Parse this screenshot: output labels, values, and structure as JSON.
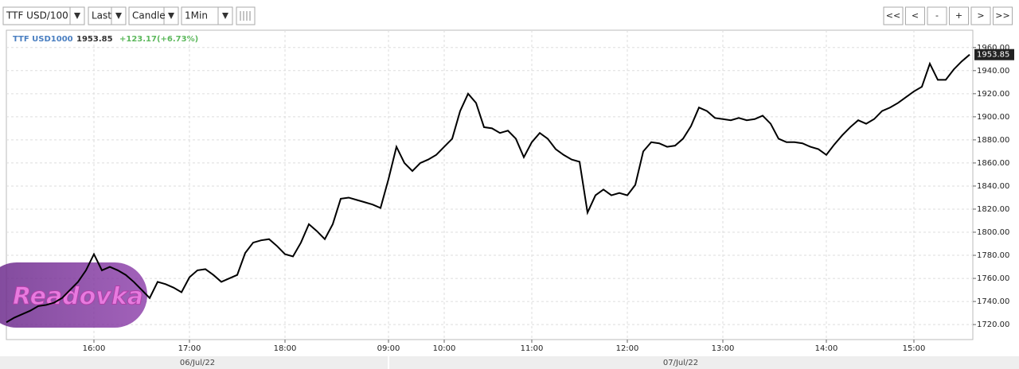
{
  "toolbar": {
    "symbol": "TTF USD/100",
    "price_type": "Last",
    "chart_type": "Candle",
    "interval": "1Min",
    "nav_buttons": [
      "<<",
      "<",
      "-",
      "+",
      ">",
      ">>"
    ]
  },
  "chart_data": {
    "type": "line",
    "symbol": "TTF USD1000",
    "last": "1953.85",
    "change": "+123.17(+6.73%)",
    "watermark": "Readovka",
    "color": "#000000",
    "grid": true,
    "dates": [
      "06/Jul/22",
      "07/Jul/22"
    ],
    "categories": [
      null,
      null,
      null,
      null,
      null,
      null,
      null,
      null,
      null,
      null,
      null,
      "16:00",
      null,
      null,
      null,
      null,
      null,
      null,
      null,
      null,
      null,
      null,
      null,
      "17:00",
      null,
      null,
      null,
      null,
      null,
      null,
      null,
      null,
      null,
      null,
      null,
      "18:00",
      null,
      null,
      null,
      null,
      null,
      null,
      null,
      null,
      null,
      null,
      null,
      null,
      "09:00",
      null,
      null,
      null,
      null,
      null,
      null,
      "10:00",
      null,
      null,
      null,
      null,
      null,
      null,
      null,
      null,
      null,
      null,
      "11:00",
      null,
      null,
      null,
      null,
      null,
      null,
      null,
      null,
      null,
      null,
      null,
      "12:00",
      null,
      null,
      null,
      null,
      null,
      null,
      null,
      null,
      null,
      null,
      null,
      "13:00",
      null,
      null,
      null,
      null,
      null,
      null,
      null,
      null,
      null,
      null,
      null,
      null,
      "14:00",
      null,
      null,
      null,
      null,
      null,
      null,
      null,
      null,
      null,
      null,
      "15:00",
      null,
      null,
      null,
      null,
      null,
      null,
      null
    ],
    "values": [
      1722,
      1726,
      1729,
      1732,
      1736,
      1737,
      1739,
      1743,
      1750,
      1757,
      1767,
      1781,
      1767,
      1770,
      1767,
      1763,
      1757,
      1750,
      1743,
      1757,
      1755,
      1752,
      1748,
      1761,
      1767,
      1768,
      1763,
      1757,
      1760,
      1763,
      1782,
      1791,
      1793,
      1794,
      1788,
      1781,
      1779,
      1791,
      1807,
      1801,
      1794,
      1807,
      1829,
      1830,
      1828,
      1826,
      1824,
      1821,
      1846,
      1874,
      1860,
      1853,
      1860,
      1863,
      1867,
      1874,
      1881,
      1905,
      1920,
      1912,
      1891,
      1890,
      1886,
      1888,
      1881,
      1865,
      1878,
      1886,
      1881,
      1872,
      1867,
      1863,
      1861,
      1817,
      1832,
      1837,
      1832,
      1834,
      1832,
      1841,
      1870,
      1878,
      1877,
      1874,
      1875,
      1881,
      1892,
      1908,
      1905,
      1899,
      1898,
      1897,
      1899,
      1897,
      1898,
      1901,
      1894,
      1881,
      1878,
      1878,
      1877,
      1874,
      1872,
      1867,
      1876,
      1884,
      1891,
      1897,
      1894,
      1898,
      1905,
      1908,
      1912,
      1917,
      1922,
      1926,
      1946,
      1932,
      1932,
      1941,
      1948,
      1953.85
    ],
    "ylim": [
      1707,
      1975
    ],
    "yticks": [
      {
        "value": 1720,
        "label": "1720.00"
      },
      {
        "value": 1740,
        "label": "1740.00"
      },
      {
        "value": 1760,
        "label": "1760.00"
      },
      {
        "value": 1780,
        "label": "1780.00"
      },
      {
        "value": 1800,
        "label": "1800.00"
      },
      {
        "value": 1820,
        "label": "1820.00"
      },
      {
        "value": 1840,
        "label": "1840.00"
      },
      {
        "value": 1860,
        "label": "1860.00"
      },
      {
        "value": 1880,
        "label": "1880.00"
      },
      {
        "value": 1900,
        "label": "1900.00"
      },
      {
        "value": 1920,
        "label": "1920.00"
      },
      {
        "value": 1940,
        "label": "1940.00"
      },
      {
        "value": 1960,
        "label": "1960.00"
      }
    ]
  }
}
